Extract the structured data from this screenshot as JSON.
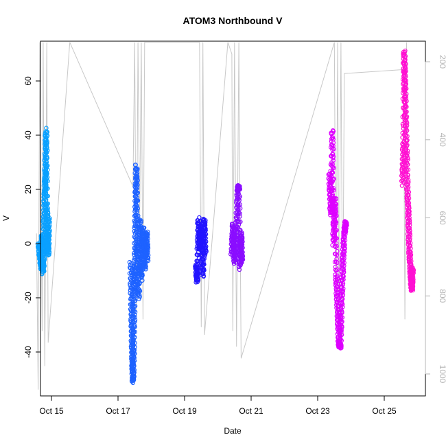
{
  "chart_data": {
    "type": "scatter",
    "title": "ATOM3 Northbound V",
    "xlabel": "Date",
    "ylabel": "V",
    "x_ticks": [
      "Oct 15",
      "Oct 17",
      "Oct 19",
      "Oct 21",
      "Oct 23",
      "Oct 25"
    ],
    "x_tick_days": [
      15,
      17,
      19,
      21,
      23,
      25
    ],
    "xlim": [
      14.35,
      26.3
    ],
    "ylim": [
      -52.5,
      74.5
    ],
    "y_ticks": [
      -40,
      -20,
      0,
      20,
      40,
      60
    ],
    "y2_ticks": [
      200,
      400,
      600,
      800,
      1000
    ],
    "y2lim": [
      1048,
      150
    ],
    "y2_color": "#b5b5b5",
    "series": [
      {
        "color": "#0aa0ff",
        "x_range": [
          14.62,
          14.92
        ],
        "values": [
          [
            14.62,
            0
          ],
          [
            14.66,
            -5
          ],
          [
            14.7,
            -9
          ],
          [
            14.72,
            3
          ],
          [
            14.75,
            -11
          ],
          [
            14.78,
            6
          ],
          [
            14.8,
            18
          ],
          [
            14.82,
            27
          ],
          [
            14.84,
            42
          ],
          [
            14.86,
            14
          ],
          [
            14.88,
            3
          ],
          [
            14.9,
            -4
          ],
          [
            14.92,
            9
          ]
        ]
      },
      {
        "color": "#1e62ff",
        "x_range": [
          17.38,
          17.88
        ],
        "values": [
          [
            17.38,
            -7
          ],
          [
            17.41,
            -26
          ],
          [
            17.43,
            -42
          ],
          [
            17.45,
            -51
          ],
          [
            17.47,
            -37
          ],
          [
            17.49,
            -18
          ],
          [
            17.51,
            -8
          ],
          [
            17.53,
            12
          ],
          [
            17.55,
            29
          ],
          [
            17.58,
            0
          ],
          [
            17.62,
            -20
          ],
          [
            17.66,
            9
          ],
          [
            17.7,
            -13
          ],
          [
            17.75,
            6
          ],
          [
            17.8,
            -9
          ],
          [
            17.86,
            4
          ],
          [
            17.88,
            -6
          ]
        ]
      },
      {
        "color": "#2214ff",
        "x_range": [
          19.35,
          19.62
        ],
        "values": [
          [
            19.35,
            -8
          ],
          [
            19.38,
            -14
          ],
          [
            19.42,
            9
          ],
          [
            19.46,
            -2
          ],
          [
            19.5,
            6
          ],
          [
            19.55,
            -12
          ],
          [
            19.59,
            9
          ],
          [
            19.62,
            -4
          ]
        ]
      },
      {
        "color": "#8a0dff",
        "x_range": [
          20.42,
          20.72
        ],
        "values": [
          [
            20.42,
            -4
          ],
          [
            20.46,
            7
          ],
          [
            20.5,
            -7
          ],
          [
            20.55,
            3
          ],
          [
            20.6,
            20
          ],
          [
            20.63,
            21
          ],
          [
            20.66,
            -9
          ],
          [
            20.7,
            4
          ],
          [
            20.72,
            -7
          ]
        ]
      },
      {
        "color": "#dd00ff",
        "x_range": [
          23.35,
          23.85
        ],
        "values": [
          [
            23.35,
            26
          ],
          [
            23.4,
            11
          ],
          [
            23.44,
            42
          ],
          [
            23.48,
            0
          ],
          [
            23.52,
            17
          ],
          [
            23.56,
            -12
          ],
          [
            23.6,
            -24
          ],
          [
            23.64,
            -37
          ],
          [
            23.68,
            -38
          ],
          [
            23.72,
            -21
          ],
          [
            23.76,
            -7
          ],
          [
            23.8,
            4
          ],
          [
            23.85,
            8
          ]
        ]
      },
      {
        "color": "#ff10d2",
        "x_range": [
          25.55,
          25.85
        ],
        "values": [
          [
            25.55,
            22
          ],
          [
            25.58,
            38
          ],
          [
            25.6,
            71
          ],
          [
            25.63,
            56
          ],
          [
            25.66,
            38
          ],
          [
            25.7,
            20
          ],
          [
            25.73,
            8
          ],
          [
            25.76,
            -3
          ],
          [
            25.8,
            -12
          ],
          [
            25.83,
            -17
          ],
          [
            25.85,
            -9
          ]
        ]
      }
    ],
    "secondary_line": {
      "axis": "right",
      "color": "#c8c8c8",
      "points": [
        [
          14.55,
          640
        ],
        [
          14.6,
          1040
        ],
        [
          14.65,
          150
        ],
        [
          14.72,
          890
        ],
        [
          14.75,
          150
        ],
        [
          14.8,
          980
        ],
        [
          14.86,
          150
        ],
        [
          14.9,
          920
        ],
        [
          15.55,
          150
        ],
        [
          17.45,
          520
        ],
        [
          17.5,
          150
        ],
        [
          17.55,
          840
        ],
        [
          17.6,
          150
        ],
        [
          17.65,
          620
        ],
        [
          17.7,
          150
        ],
        [
          17.75,
          860
        ],
        [
          17.8,
          150
        ],
        [
          19.45,
          150
        ],
        [
          19.5,
          880
        ],
        [
          19.55,
          150
        ],
        [
          19.6,
          900
        ],
        [
          20.3,
          150
        ],
        [
          20.42,
          180
        ],
        [
          20.45,
          890
        ],
        [
          20.5,
          150
        ],
        [
          20.56,
          930
        ],
        [
          20.63,
          150
        ],
        [
          20.7,
          960
        ],
        [
          23.5,
          150
        ],
        [
          23.55,
          880
        ],
        [
          23.6,
          150
        ],
        [
          23.64,
          870
        ],
        [
          23.7,
          150
        ],
        [
          23.75,
          900
        ],
        [
          23.8,
          230
        ],
        [
          25.58,
          220
        ],
        [
          25.62,
          860
        ],
        [
          25.67,
          150
        ],
        [
          25.72,
          740
        ]
      ]
    }
  }
}
